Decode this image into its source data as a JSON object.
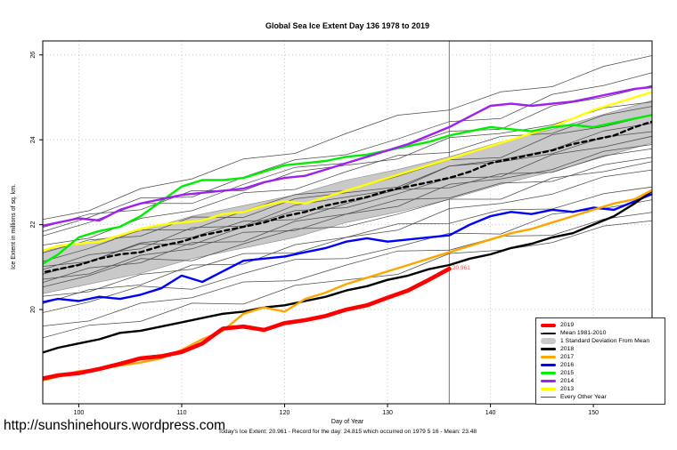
{
  "page": {
    "watermark": "http://sunshinehours.wordpress.com"
  },
  "chart_data": {
    "type": "line",
    "title": "Global Sea Ice Extent Day 136 1978 to 2019",
    "xlabel": "Day of Year",
    "ylabel": "Ice Extent in millions of sq. km.",
    "subtitle": "Today's Ice Extent: 20.961  - Record for the day: 24.815 which occurred on 1979 5 16  - Mean: 23.48",
    "xlim": [
      96.5,
      155.7
    ],
    "ylim": [
      17.78,
      26.33
    ],
    "x_ticks": [
      100,
      110,
      120,
      130,
      140,
      150
    ],
    "y_ticks": [
      20,
      22,
      24,
      26
    ],
    "grid": true,
    "legend_position": "bottom-right",
    "day_marker": {
      "day": 136,
      "value": 20.961,
      "label": "20.961",
      "line_color": "#8c8c8c",
      "label_color": "#ff4d4d"
    },
    "band": {
      "name": "1 Standard Deviation From Mean",
      "fill": "#c9c9c9",
      "stroke": "#8a8a8a",
      "day_start": 96,
      "day_step": 5,
      "upper": [
        21.35,
        21.6,
        21.85,
        22.2,
        22.45,
        22.7,
        23.05,
        23.3,
        23.6,
        23.95,
        24.25,
        24.6,
        24.95
      ],
      "lower": [
        20.35,
        20.6,
        20.85,
        21.2,
        21.45,
        21.7,
        22.05,
        22.3,
        22.6,
        22.95,
        23.25,
        23.6,
        23.95
      ]
    },
    "series": [
      {
        "name": "Mean 1981-2010",
        "color": "#000000",
        "width": 2.4,
        "dash": "5 4",
        "day_start": 96,
        "day_step": 2,
        "values": [
          20.85,
          20.95,
          21.05,
          21.2,
          21.3,
          21.35,
          21.5,
          21.6,
          21.75,
          21.85,
          21.95,
          22.05,
          22.2,
          22.3,
          22.45,
          22.55,
          22.65,
          22.8,
          22.9,
          23.0,
          23.1,
          23.25,
          23.45,
          23.55,
          23.65,
          23.75,
          23.9,
          24.0,
          24.1,
          24.3,
          24.45
        ]
      },
      {
        "name": "2013",
        "color": "#ffff00",
        "width": 2.4,
        "day_start": 96,
        "day_step": 2,
        "values": [
          21.35,
          21.5,
          21.55,
          21.6,
          21.75,
          21.9,
          22.0,
          22.05,
          22.1,
          22.25,
          22.3,
          22.45,
          22.55,
          22.5,
          22.65,
          22.8,
          22.95,
          23.1,
          23.25,
          23.4,
          23.55,
          23.7,
          23.85,
          24.0,
          24.15,
          24.3,
          24.5,
          24.7,
          24.85,
          25.0,
          25.15
        ]
      },
      {
        "name": "2015",
        "color": "#00ee00",
        "width": 2.4,
        "day_start": 96,
        "day_step": 2,
        "values": [
          21.0,
          21.3,
          21.7,
          21.85,
          21.95,
          22.2,
          22.55,
          22.9,
          23.05,
          23.05,
          23.1,
          23.25,
          23.4,
          23.45,
          23.5,
          23.6,
          23.65,
          23.75,
          23.85,
          23.95,
          24.1,
          24.2,
          24.3,
          24.25,
          24.2,
          24.3,
          24.35,
          24.3,
          24.4,
          24.5,
          24.6
        ]
      },
      {
        "name": "2014",
        "color": "#a020f0",
        "width": 2.4,
        "day_start": 96,
        "day_step": 2,
        "values": [
          21.95,
          22.05,
          22.15,
          22.1,
          22.35,
          22.5,
          22.6,
          22.7,
          22.75,
          22.8,
          22.85,
          23.0,
          23.1,
          23.15,
          23.3,
          23.45,
          23.6,
          23.75,
          23.9,
          24.1,
          24.3,
          24.55,
          24.8,
          24.85,
          24.8,
          24.85,
          24.9,
          25.0,
          25.1,
          25.2,
          25.25
        ]
      },
      {
        "name": "2016",
        "color": "#0000ff",
        "width": 2.4,
        "day_start": 96,
        "day_step": 2,
        "values": [
          20.15,
          20.25,
          20.2,
          20.3,
          20.25,
          20.35,
          20.5,
          20.8,
          20.65,
          20.9,
          21.15,
          21.2,
          21.25,
          21.35,
          21.45,
          21.6,
          21.68,
          21.6,
          21.65,
          21.7,
          21.75,
          22.0,
          22.2,
          22.3,
          22.25,
          22.35,
          22.3,
          22.4,
          22.35,
          22.55,
          22.75
        ]
      },
      {
        "name": "2018",
        "color": "#000000",
        "width": 2.4,
        "day_start": 96,
        "day_step": 2,
        "values": [
          18.95,
          19.1,
          19.2,
          19.3,
          19.45,
          19.5,
          19.6,
          19.7,
          19.8,
          19.9,
          19.95,
          20.05,
          20.1,
          20.2,
          20.3,
          20.45,
          20.55,
          20.7,
          20.8,
          20.95,
          21.05,
          21.2,
          21.3,
          21.45,
          21.55,
          21.7,
          21.8,
          22.0,
          22.2,
          22.5,
          22.85
        ]
      },
      {
        "name": "2017",
        "color": "#ffa500",
        "width": 2.4,
        "day_start": 96,
        "day_step": 2,
        "values": [
          18.3,
          18.42,
          18.55,
          18.6,
          18.68,
          18.75,
          18.85,
          19.05,
          19.3,
          19.5,
          19.9,
          20.05,
          19.95,
          20.25,
          20.4,
          20.6,
          20.75,
          20.9,
          21.05,
          21.2,
          21.35,
          21.5,
          21.65,
          21.8,
          21.9,
          22.05,
          22.2,
          22.35,
          22.5,
          22.6,
          22.85
        ]
      },
      {
        "name": "2019",
        "color": "#ff0000",
        "width": 4.6,
        "day_start": 96,
        "day_step": 2,
        "values": [
          18.35,
          18.45,
          18.5,
          18.6,
          18.72,
          18.85,
          18.9,
          19.0,
          19.2,
          19.55,
          19.6,
          19.52,
          19.68,
          19.75,
          19.85,
          20.0,
          20.1,
          20.28,
          20.45,
          20.7,
          20.961
        ]
      }
    ],
    "every_other_year": {
      "name": "Every Other Year",
      "color": "#4d4d4d",
      "width": 0.75,
      "day_start": 96,
      "day_step": 5,
      "lines": [
        [
          19.3,
          19.63,
          19.72,
          20.15,
          20.13,
          20.57,
          20.7,
          20.83,
          21.32,
          21.4,
          21.58,
          21.97,
          22.1
        ],
        [
          19.6,
          19.73,
          20.15,
          20.28,
          20.65,
          20.68,
          21.05,
          21.38,
          21.4,
          21.73,
          21.75,
          22.13,
          22.3
        ],
        [
          19.9,
          20.18,
          20.55,
          20.48,
          20.85,
          21.18,
          21.2,
          21.48,
          21.8,
          21.78,
          22.25,
          22.38,
          22.6
        ],
        [
          20.1,
          20.47,
          20.58,
          21.05,
          21.07,
          21.53,
          21.7,
          21.87,
          22.38,
          22.5,
          22.72,
          23.13,
          23.3
        ],
        [
          20.3,
          20.42,
          20.83,
          20.95,
          21.32,
          21.33,
          21.7,
          22.02,
          22.03,
          22.35,
          22.37,
          22.73,
          22.9
        ],
        [
          20.5,
          20.8,
          21.2,
          21.15,
          21.55,
          21.9,
          21.95,
          22.25,
          22.6,
          22.6,
          23.1,
          23.25,
          23.5
        ],
        [
          20.6,
          20.98,
          21.1,
          21.58,
          21.6,
          22.08,
          22.25,
          22.43,
          22.95,
          23.08,
          23.3,
          23.73,
          23.9
        ],
        [
          20.7,
          20.84,
          21.28,
          21.43,
          21.82,
          21.86,
          22.25,
          22.59,
          22.63,
          22.98,
          23.02,
          23.41,
          23.6
        ],
        [
          20.8,
          21.13,
          21.55,
          21.53,
          21.95,
          22.33,
          22.4,
          22.73,
          23.1,
          23.13,
          23.65,
          23.83,
          24.1
        ],
        [
          20.9,
          21.29,
          21.43,
          21.93,
          21.97,
          22.46,
          22.65,
          22.84,
          23.38,
          23.53,
          23.77,
          24.21,
          24.4
        ],
        [
          21.0,
          21.13,
          21.57,
          21.7,
          22.08,
          22.12,
          22.5,
          22.83,
          22.87,
          23.2,
          23.23,
          23.62,
          23.8
        ],
        [
          21.1,
          21.44,
          21.88,
          21.88,
          22.32,
          22.71,
          22.8,
          23.14,
          23.53,
          23.58,
          24.12,
          24.31,
          24.6
        ],
        [
          21.3,
          21.64,
          21.73,
          22.18,
          22.17,
          22.61,
          22.75,
          22.89,
          23.38,
          23.48,
          23.67,
          24.06,
          24.2
        ],
        [
          21.5,
          21.68,
          22.15,
          22.33,
          22.75,
          22.83,
          23.25,
          23.63,
          23.7,
          24.08,
          24.15,
          24.58,
          24.8
        ],
        [
          21.7,
          22.05,
          22.5,
          22.5,
          22.95,
          23.35,
          23.45,
          23.8,
          24.2,
          24.25,
          24.8,
          25.0,
          25.3
        ],
        [
          21.9,
          22.25,
          22.35,
          22.8,
          22.8,
          23.25,
          23.4,
          23.55,
          24.05,
          24.15,
          24.35,
          24.75,
          24.9
        ],
        [
          22.1,
          22.33,
          22.85,
          23.08,
          23.55,
          23.68,
          24.15,
          24.58,
          24.7,
          25.13,
          25.25,
          25.73,
          26.0
        ],
        [
          21.8,
          22.17,
          22.63,
          22.65,
          23.12,
          23.53,
          23.65,
          24.02,
          24.43,
          24.5,
          25.07,
          25.28,
          25.6
        ]
      ]
    },
    "legend": [
      {
        "label": "2019",
        "swatch": "thick-line",
        "color": "#ff0000"
      },
      {
        "label": "Mean 1981-2010",
        "swatch": "dashed-line",
        "color": "#000000"
      },
      {
        "label": "1 Standard Deviation From Mean",
        "swatch": "band",
        "color": "#c9c9c9"
      },
      {
        "label": "2018",
        "swatch": "line",
        "color": "#000000"
      },
      {
        "label": "2017",
        "swatch": "line",
        "color": "#ffa500"
      },
      {
        "label": "2016",
        "swatch": "line",
        "color": "#0000ff"
      },
      {
        "label": "2015",
        "swatch": "line",
        "color": "#00ee00"
      },
      {
        "label": "2014",
        "swatch": "line",
        "color": "#a020f0"
      },
      {
        "label": "2013",
        "swatch": "line",
        "color": "#ffff00"
      },
      {
        "label": "Every Other Year",
        "swatch": "thin-line",
        "color": "#4d4d4d"
      }
    ]
  }
}
